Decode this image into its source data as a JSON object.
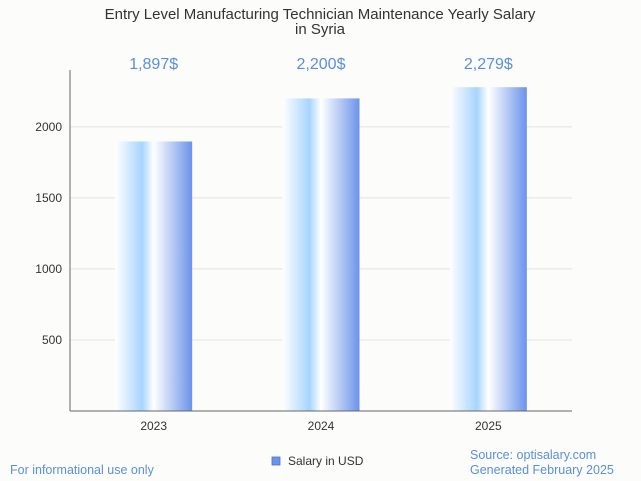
{
  "chart_data": {
    "type": "bar",
    "title_lines": [
      "Entry Level Manufacturing Technician Maintenance Yearly Salary",
      "in Syria"
    ],
    "categories": [
      "2023",
      "2024",
      "2025"
    ],
    "series": [
      {
        "name": "Salary in USD",
        "values": [
          1897,
          2200,
          2279
        ]
      }
    ],
    "value_labels": [
      "1,897$",
      "2,200$",
      "2,279$"
    ],
    "yticks": [
      500,
      1000,
      1500,
      2000
    ],
    "ylim": [
      0,
      2400
    ],
    "grid": true,
    "legend_position": "bottom"
  },
  "colors": {
    "bar_light": "#ffffff",
    "bar_mid": "#a8d4ff",
    "bar_dark": "#6b93eb",
    "value_label": "#5b8fd9",
    "footer_text": "#5b8fd9",
    "gridline": "#e3e3e3",
    "axis": "#666666"
  },
  "footer": {
    "left_note": "For informational use only",
    "source": "Source: optisalary.com",
    "generated": "Generated February 2025"
  }
}
